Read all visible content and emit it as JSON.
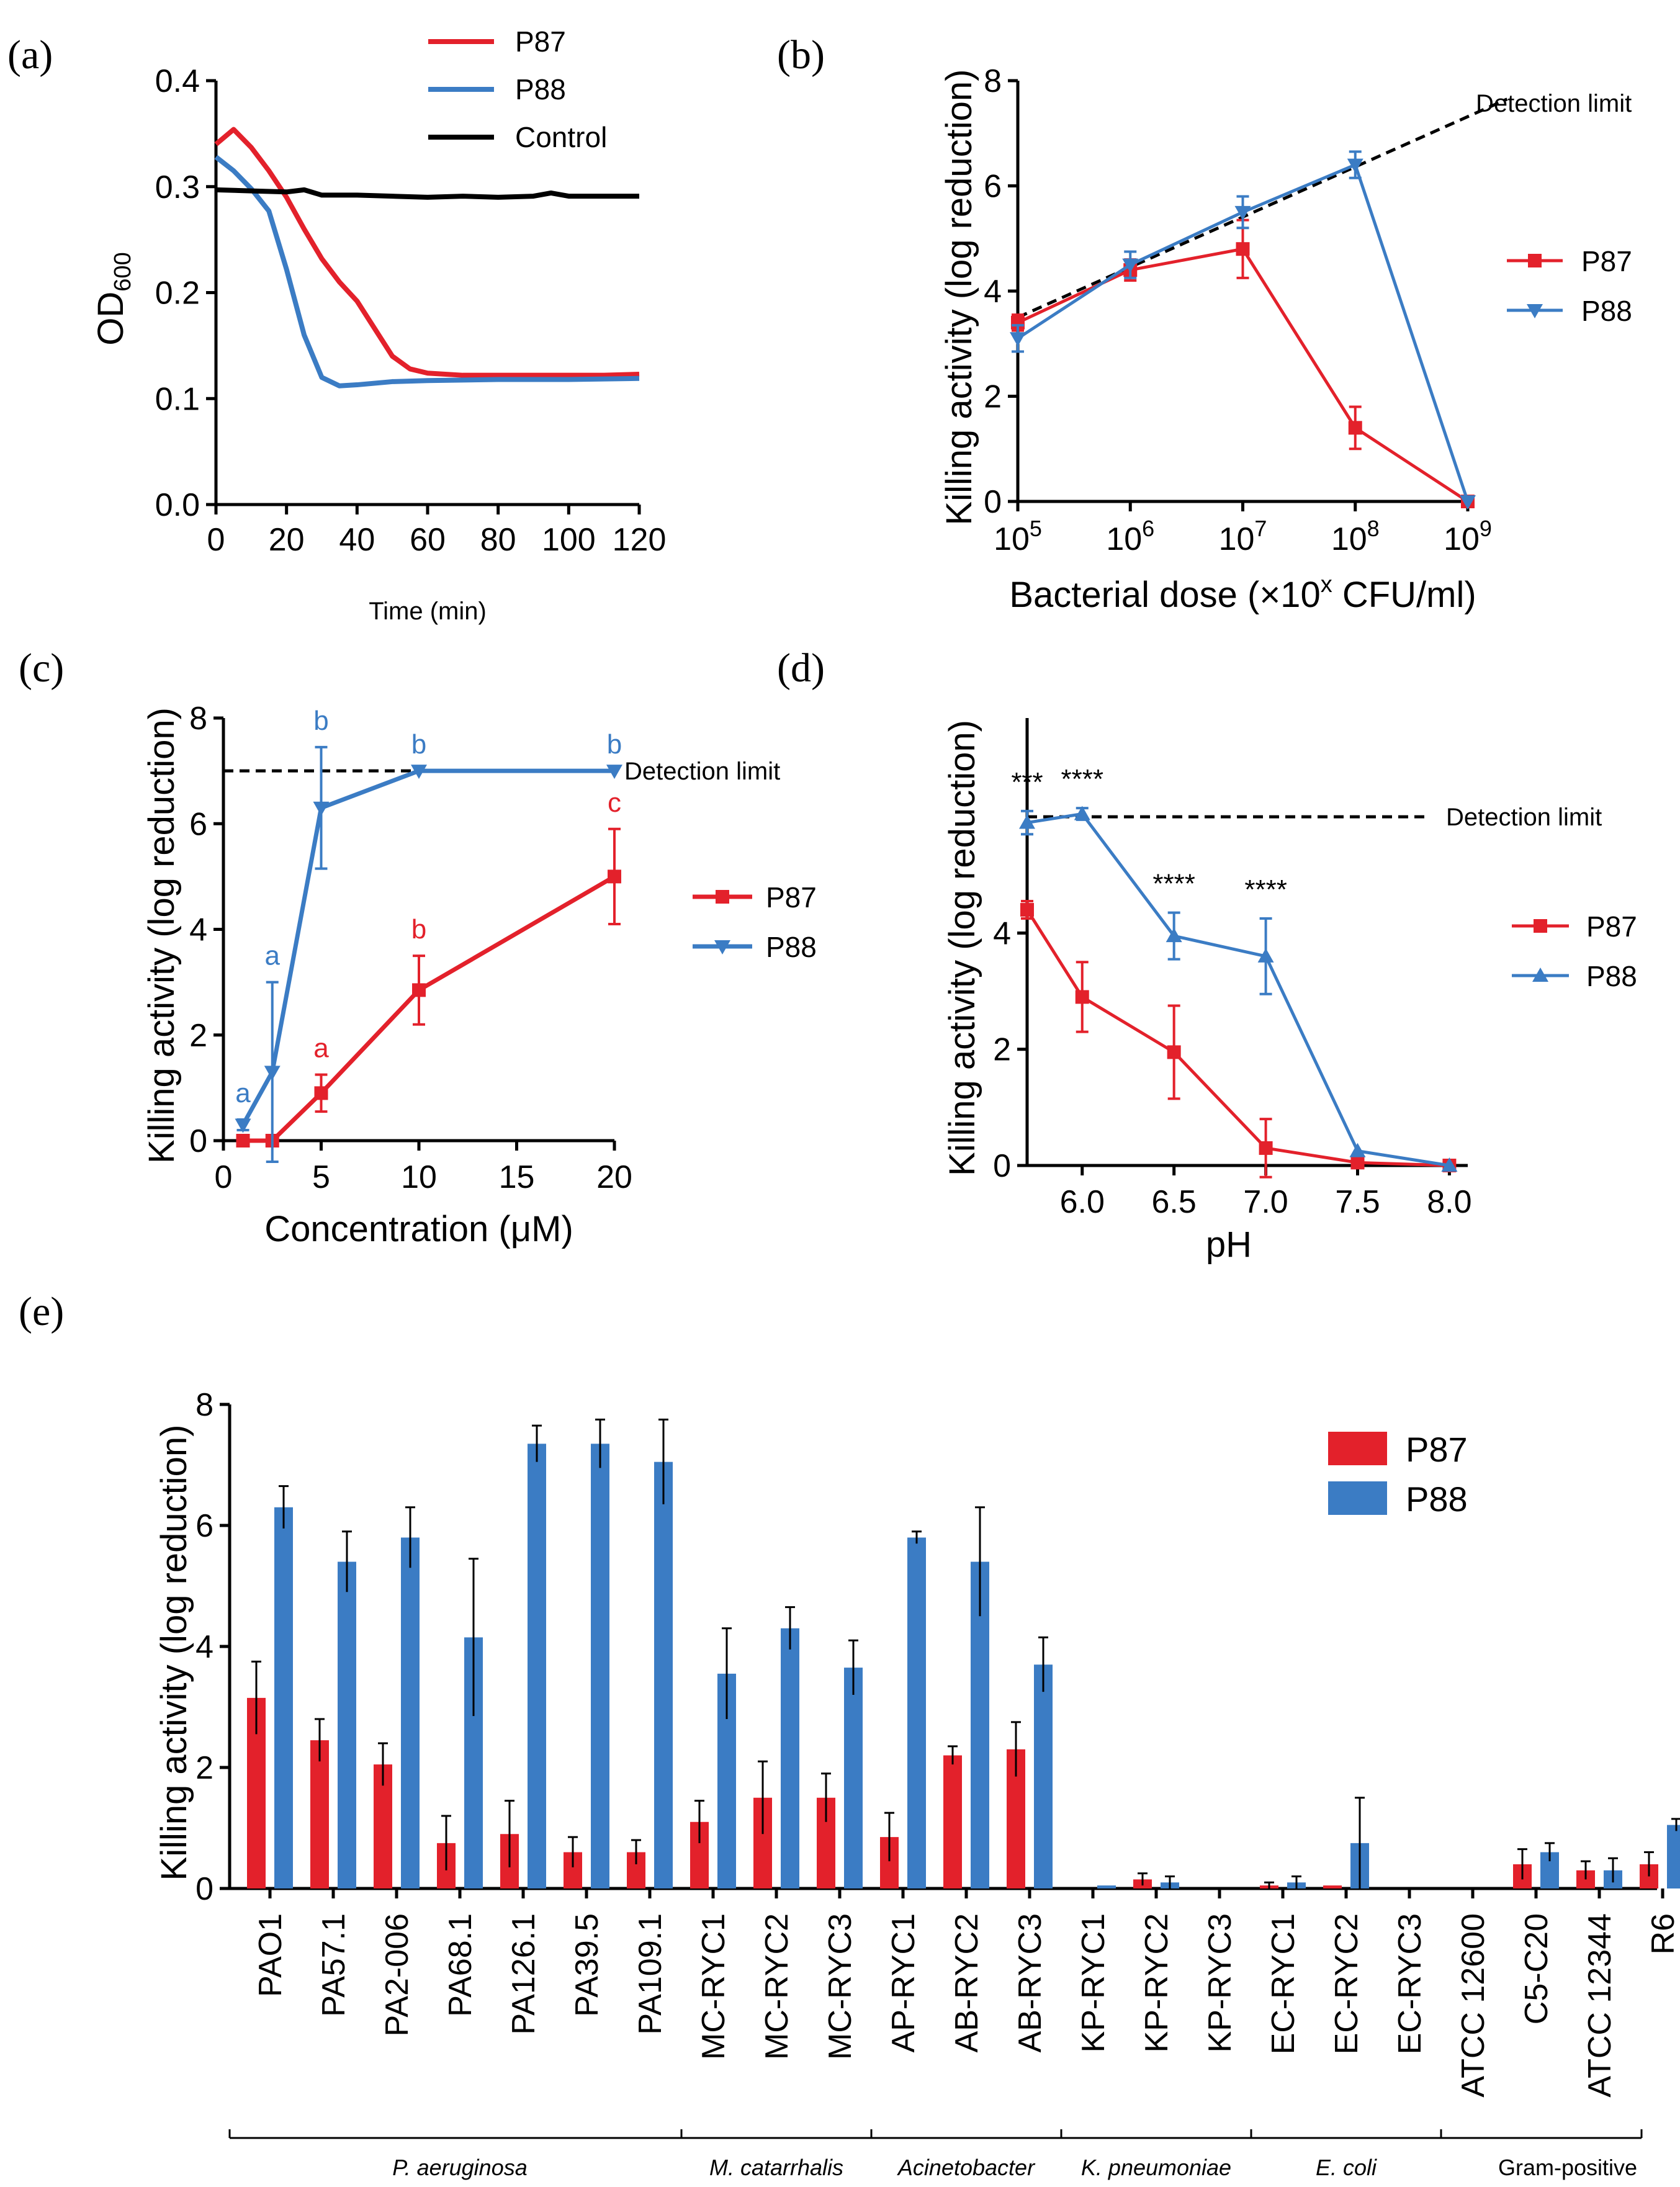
{
  "colors": {
    "p87": "#e3212b",
    "p88": "#3b7cc4",
    "control": "#000000",
    "err_e": "#000000"
  },
  "panels": {
    "a": {
      "label": "(a)"
    },
    "b": {
      "label": "(b)"
    },
    "c": {
      "label": "(c)"
    },
    "d": {
      "label": "(d)"
    },
    "e": {
      "label": "(e)"
    }
  },
  "chart_data": [
    {
      "id": "a",
      "type": "line",
      "title": "",
      "xlabel": "Time (min)",
      "ylabel_main": "OD",
      "ylabel_sub": "600",
      "xlim": [
        0,
        120
      ],
      "ylim": [
        0.0,
        0.4
      ],
      "xticks": [
        0,
        20,
        40,
        60,
        80,
        100,
        120
      ],
      "xtick_labels": [
        "0",
        "20",
        "40",
        "60",
        "80",
        "100",
        "120"
      ],
      "yticks": [
        0.0,
        0.1,
        0.2,
        0.3,
        0.4
      ],
      "ytick_labels": [
        "0.0",
        "0.1",
        "0.2",
        "0.3",
        "0.4"
      ],
      "legend": [
        "P87",
        "P88",
        "Control"
      ],
      "series": [
        {
          "name": "P87",
          "x": [
            0,
            5,
            10,
            15,
            20,
            25,
            30,
            35,
            40,
            45,
            50,
            55,
            60,
            70,
            80,
            90,
            100,
            110,
            120
          ],
          "y": [
            0.34,
            0.354,
            0.337,
            0.315,
            0.29,
            0.26,
            0.232,
            0.21,
            0.192,
            0.166,
            0.14,
            0.128,
            0.124,
            0.122,
            0.122,
            0.122,
            0.122,
            0.122,
            0.123
          ]
        },
        {
          "name": "P88",
          "x": [
            0,
            5,
            10,
            15,
            20,
            25,
            30,
            35,
            40,
            50,
            60,
            80,
            100,
            120
          ],
          "y": [
            0.328,
            0.315,
            0.298,
            0.277,
            0.222,
            0.16,
            0.12,
            0.112,
            0.113,
            0.116,
            0.117,
            0.118,
            0.118,
            0.119
          ]
        },
        {
          "name": "Control",
          "x": [
            0,
            10,
            20,
            25,
            30,
            40,
            50,
            60,
            70,
            80,
            90,
            95,
            100,
            110,
            120
          ],
          "y": [
            0.297,
            0.296,
            0.295,
            0.297,
            0.292,
            0.292,
            0.291,
            0.29,
            0.291,
            0.29,
            0.291,
            0.294,
            0.291,
            0.291,
            0.291
          ]
        }
      ]
    },
    {
      "id": "b",
      "type": "line",
      "xlabel_main": "Bacterial dose (",
      "xlabel_times": "×10",
      "xlabel_exp": "x",
      "xlabel_rest": " CFU/ml)",
      "ylabel": "Killing activity (log reduction)",
      "xlim": [
        5,
        9
      ],
      "ylim": [
        0,
        8
      ],
      "xticks": [
        5,
        6,
        7,
        8,
        9
      ],
      "xtick_base": "10",
      "xtick_exps": [
        "5",
        "6",
        "7",
        "8",
        "9"
      ],
      "yticks": [
        0,
        2,
        4,
        6,
        8
      ],
      "ytick_labels": [
        "0",
        "2",
        "4",
        "6",
        "8"
      ],
      "detection_limit": {
        "label": "Detection limit",
        "x": [
          5,
          9.35
        ],
        "y": [
          3.5,
          7.65
        ]
      },
      "legend": [
        "P87",
        "P88"
      ],
      "series": [
        {
          "name": "P87",
          "x": [
            5,
            6,
            7,
            8,
            9
          ],
          "y": [
            3.4,
            4.4,
            4.8,
            1.4,
            0.0
          ],
          "err": [
            0.15,
            0.2,
            0.55,
            0.4,
            0
          ]
        },
        {
          "name": "P88",
          "x": [
            5,
            6,
            7,
            8,
            9
          ],
          "y": [
            3.1,
            4.5,
            5.5,
            6.4,
            0.0
          ],
          "err": [
            0.25,
            0.25,
            0.3,
            0.25,
            0
          ]
        }
      ]
    },
    {
      "id": "c",
      "type": "line",
      "xlabel": "Concentration (μM)",
      "ylabel": "Killing activity (log reduction)",
      "xlim": [
        0,
        20
      ],
      "ylim": [
        0,
        8
      ],
      "xticks": [
        0,
        5,
        10,
        15,
        20
      ],
      "xtick_labels": [
        "0",
        "5",
        "10",
        "15",
        "20"
      ],
      "yticks": [
        0,
        2,
        4,
        6,
        8
      ],
      "ytick_labels": [
        "0",
        "2",
        "4",
        "6",
        "8"
      ],
      "detection_limit": {
        "label": "Detection limit",
        "y": 7.0
      },
      "legend": [
        "P87",
        "P88"
      ],
      "series": [
        {
          "name": "P87",
          "x": [
            1,
            2.5,
            5,
            10,
            20
          ],
          "y": [
            0.0,
            0.0,
            0.9,
            2.85,
            5.0
          ],
          "err": [
            0,
            0,
            0.35,
            0.65,
            0.9
          ],
          "letters": [
            "",
            "",
            "a",
            "b",
            "c"
          ]
        },
        {
          "name": "P88",
          "x": [
            1,
            2.5,
            5,
            10,
            20
          ],
          "y": [
            0.3,
            1.3,
            6.3,
            7.0,
            7.0
          ],
          "err": [
            0.1,
            1.7,
            1.15,
            0,
            0
          ],
          "letters": [
            "a",
            "a",
            "b",
            "b",
            "b"
          ]
        }
      ]
    },
    {
      "id": "d",
      "type": "line",
      "xlabel": "pH",
      "ylabel": "Killing activity (log reduction)",
      "xlim": [
        5.7,
        8.1
      ],
      "ylim": [
        0,
        7.7
      ],
      "xticks": [
        6.0,
        6.5,
        7.0,
        7.5,
        8.0
      ],
      "xtick_labels": [
        "6.0",
        "6.5",
        "7.0",
        "7.5",
        "8.0"
      ],
      "yticks": [
        0,
        2,
        4
      ],
      "ytick_labels": [
        "0",
        "2",
        "4"
      ],
      "detection_limit": {
        "label": "Detection limit",
        "y": 6.0
      },
      "legend": [
        "P87",
        "P88"
      ],
      "significance": [
        {
          "x": 5.7,
          "label": "***"
        },
        {
          "x": 6.0,
          "label": "****"
        },
        {
          "x": 6.5,
          "label": "****"
        },
        {
          "x": 7.0,
          "label": "****"
        }
      ],
      "series": [
        {
          "name": "P87",
          "x": [
            5.7,
            6.0,
            6.5,
            7.0,
            7.5,
            8.0
          ],
          "y": [
            4.4,
            2.9,
            1.95,
            0.3,
            0.05,
            0.0
          ],
          "err": [
            0.15,
            0.6,
            0.8,
            0.5,
            0,
            0
          ]
        },
        {
          "name": "P88",
          "x": [
            5.7,
            6.0,
            6.5,
            7.0,
            7.5,
            8.0
          ],
          "y": [
            5.9,
            6.05,
            3.95,
            3.6,
            0.25,
            0.0
          ],
          "err": [
            0.2,
            0.1,
            0.4,
            0.65,
            0,
            0
          ]
        }
      ]
    },
    {
      "id": "e",
      "type": "bar",
      "ylabel": "Killing activity (log reduction)",
      "ylim": [
        0,
        8
      ],
      "yticks": [
        0,
        2,
        4,
        6,
        8
      ],
      "ytick_labels": [
        "0",
        "2",
        "4",
        "6",
        "8"
      ],
      "legend": [
        "P87",
        "P88"
      ],
      "categories": [
        "PAO1",
        "PA57.1",
        "PA2-006",
        "PA68.1",
        "PA126.1",
        "PA39.5",
        "PA109.1",
        "MC-RYC1",
        "MC-RYC2",
        "MC-RYC3",
        "AP-RYC1",
        "AB-RYC2",
        "AB-RYC3",
        "KP-RYC1",
        "KP-RYC2",
        "KP-RYC3",
        "EC-RYC1",
        "EC-RYC2",
        "EC-RYC3",
        "ATCC 12600",
        "C5-C20",
        "ATCC 12344",
        "R6"
      ],
      "series": [
        {
          "name": "P87",
          "values": [
            3.15,
            2.45,
            2.05,
            0.75,
            0.9,
            0.6,
            0.6,
            1.1,
            1.5,
            1.5,
            0.85,
            2.2,
            2.3,
            0.0,
            0.15,
            0.0,
            0.05,
            0.05,
            0.0,
            0.0,
            0.4,
            0.3,
            0.4
          ],
          "err": [
            0.6,
            0.35,
            0.35,
            0.45,
            0.55,
            0.25,
            0.2,
            0.35,
            0.6,
            0.4,
            0.4,
            0.15,
            0.45,
            0,
            0.1,
            0,
            0.05,
            0,
            0,
            0,
            0.25,
            0.15,
            0.2
          ]
        },
        {
          "name": "P88",
          "values": [
            6.3,
            5.4,
            5.8,
            4.15,
            7.35,
            7.35,
            7.05,
            3.55,
            4.3,
            3.65,
            5.8,
            5.4,
            3.7,
            0.05,
            0.1,
            0.0,
            0.1,
            0.75,
            0.0,
            0.0,
            0.6,
            0.3,
            1.05
          ],
          "err": [
            0.35,
            0.5,
            0.5,
            1.3,
            0.3,
            0.4,
            0.7,
            0.75,
            0.35,
            0.45,
            0.1,
            0.9,
            0.45,
            0,
            0.1,
            0,
            0.1,
            0.75,
            0,
            0,
            0.15,
            0.2,
            0.1
          ]
        }
      ],
      "groups": [
        {
          "label": "P. aeruginosa",
          "italic": true,
          "from": 0,
          "to": 6
        },
        {
          "label": "M. catarrhalis",
          "italic": true,
          "from": 7,
          "to": 9
        },
        {
          "label": "Acinetobacter",
          "italic": true,
          "from": 10,
          "to": 12
        },
        {
          "label": "K. pneumoniae",
          "italic": true,
          "from": 13,
          "to": 15
        },
        {
          "label": "E. coli",
          "italic": true,
          "from": 16,
          "to": 18
        },
        {
          "label": "Gram-positive",
          "italic": false,
          "from": 19,
          "to": 22
        }
      ]
    }
  ]
}
